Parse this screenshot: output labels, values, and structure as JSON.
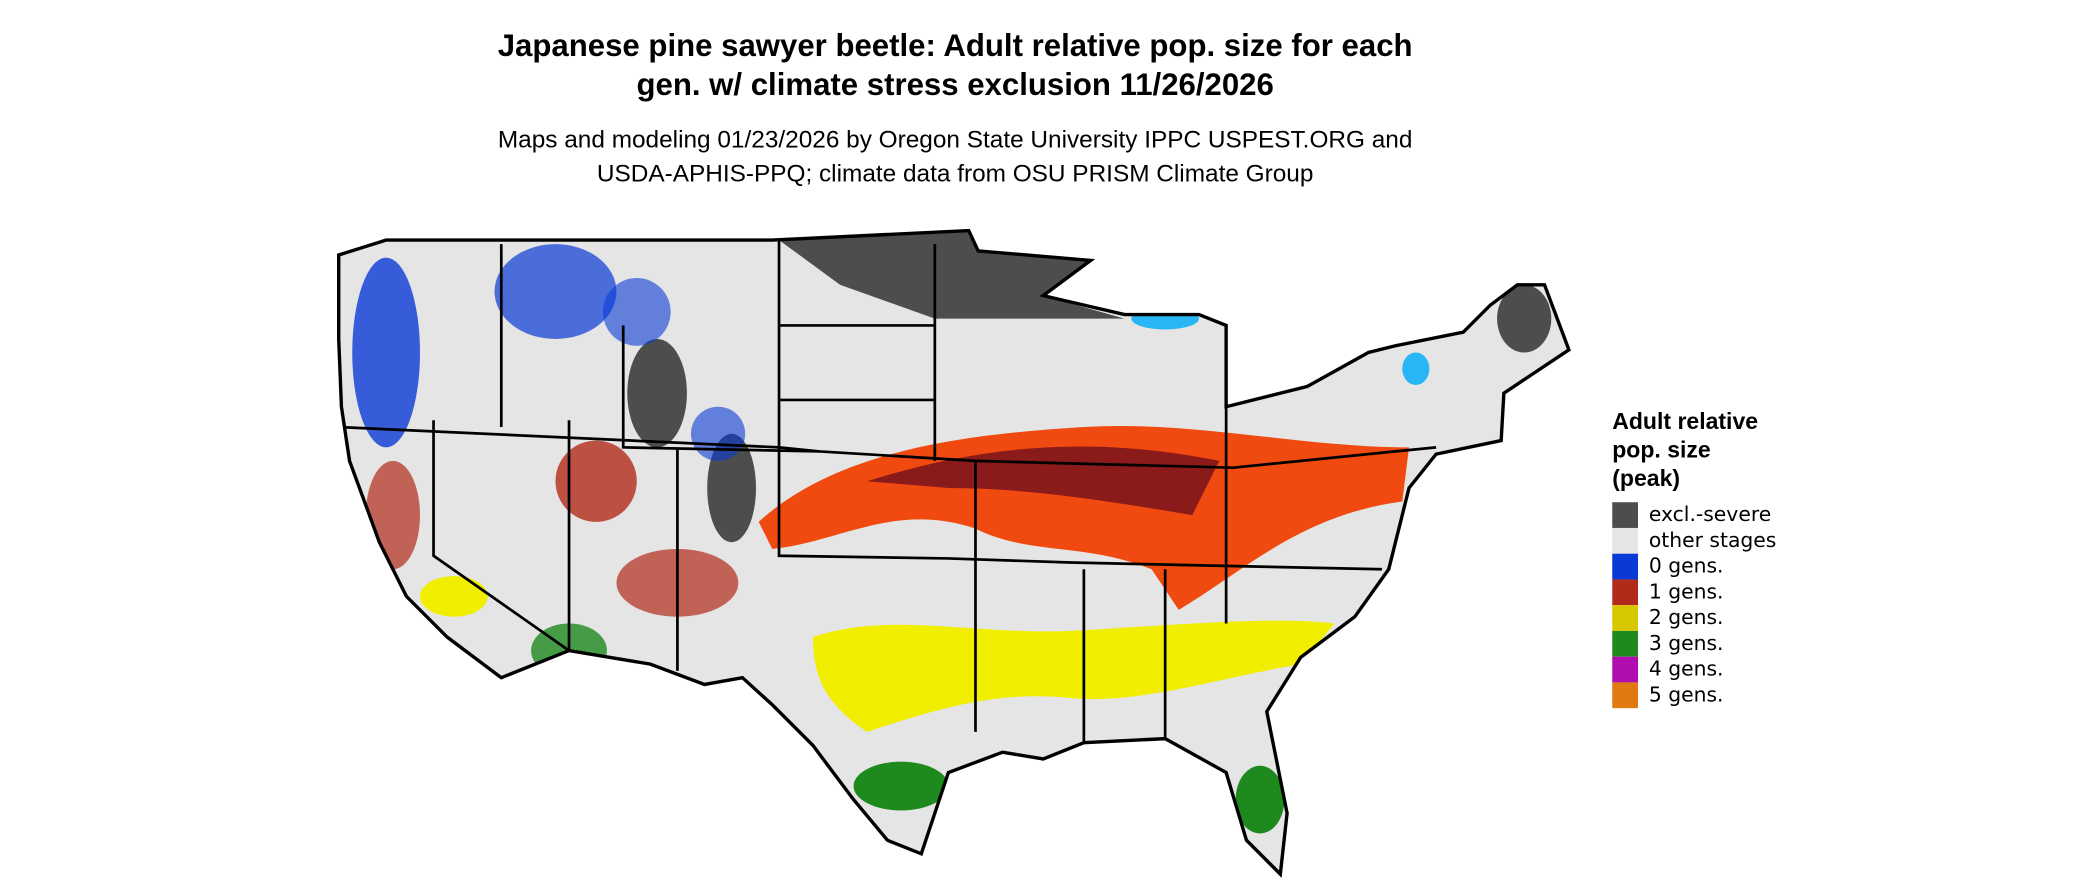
{
  "header": {
    "title": [
      "Japanese pine sawyer beetle: Adult relative pop. size for each",
      "gen. w/ climate stress exclusion 11/26/2026"
    ],
    "subtitle": [
      "Maps and modeling 01/23/2026 by Oregon State University IPPC USPEST.ORG and",
      "USDA-APHIS-PPQ; climate data from OSU PRISM Climate Group"
    ]
  },
  "legend": {
    "title": [
      "Adult relative",
      "pop. size",
      "(peak)"
    ],
    "items": [
      {
        "label": "excl.-severe",
        "color": "#4d4d4d"
      },
      {
        "label": "other stages",
        "color": "#e5e5e5"
      },
      {
        "label": "0 gens.",
        "color": "#0a3ad6"
      },
      {
        "label": "1 gens.",
        "color": "#b22b1a"
      },
      {
        "label": "2 gens.",
        "color": "#d8c800"
      },
      {
        "label": "3 gens.",
        "color": "#1e8a1e"
      },
      {
        "label": "4 gens.",
        "color": "#b00cb0"
      },
      {
        "label": "5 gens.",
        "color": "#e07a10"
      }
    ]
  }
}
